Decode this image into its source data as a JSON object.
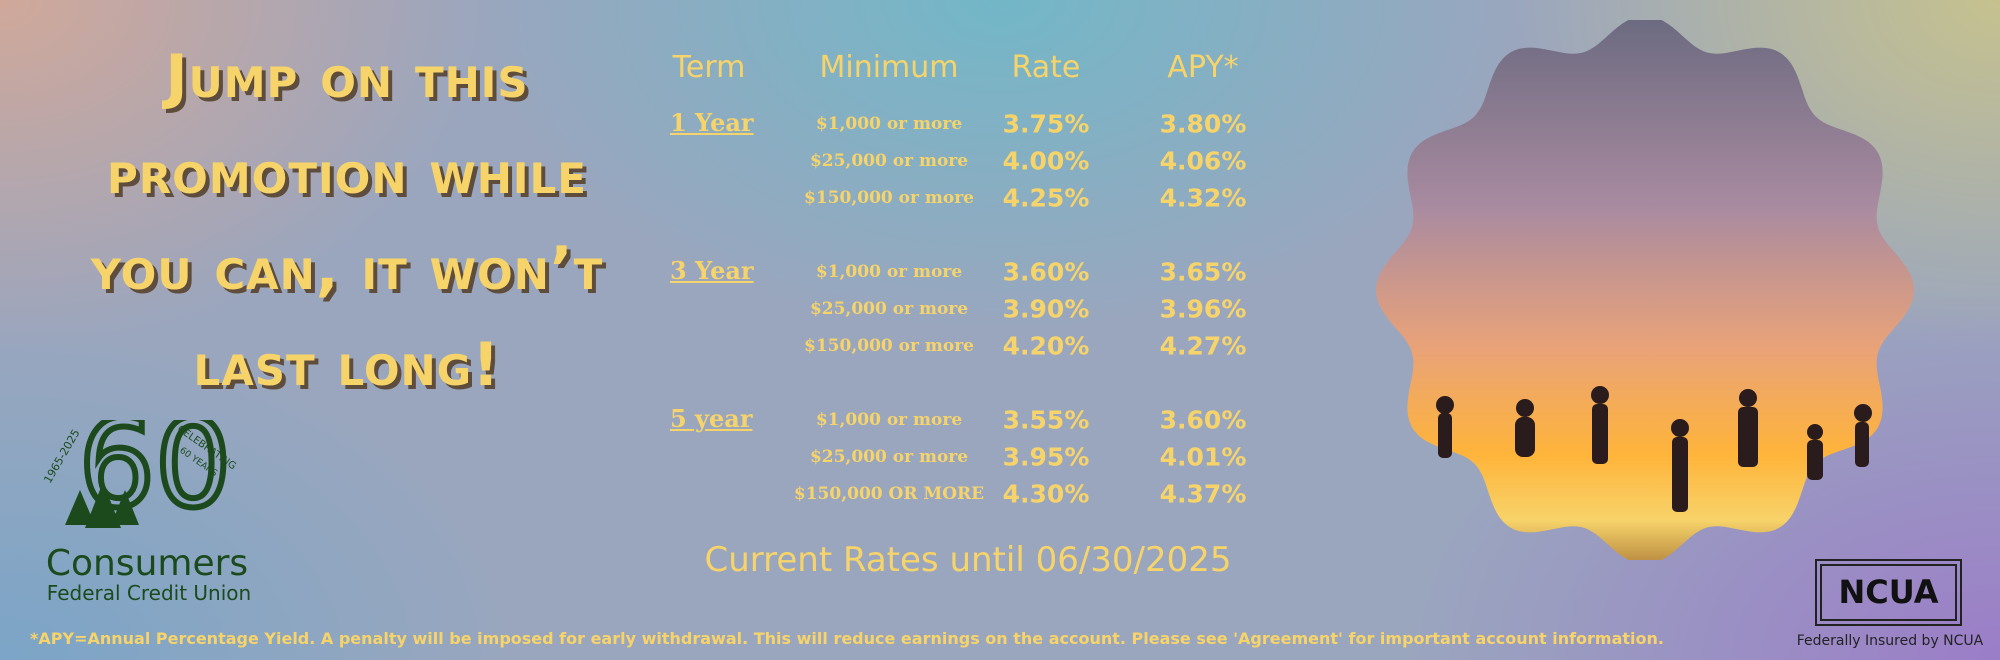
{
  "headline": [
    "Jump on this",
    "promotion while",
    "you can, it won’t",
    "last long!"
  ],
  "rates_table": {
    "headers": [
      "Term",
      "Minimum",
      "Rate",
      "APY*"
    ],
    "groups": [
      {
        "term": "1 Year",
        "tiers": [
          {
            "minimum": "$1,000 or more",
            "rate": "3.75%",
            "apy": "3.80%"
          },
          {
            "minimum": "$25,000 or more",
            "rate": "4.00%",
            "apy": "4.06%"
          },
          {
            "minimum": "$150,000 or more",
            "rate": "4.25%",
            "apy": "4.32%"
          }
        ]
      },
      {
        "term": "3 Year",
        "tiers": [
          {
            "minimum": "$1,000 or more",
            "rate": "3.60%",
            "apy": "3.65%"
          },
          {
            "minimum": "$25,000 or more",
            "rate": "3.90%",
            "apy": "3.96%"
          },
          {
            "minimum": "$150,000 or more",
            "rate": "4.20%",
            "apy": "4.27%"
          }
        ]
      },
      {
        "term": "5 year",
        "tiers": [
          {
            "minimum": "$1,000 or more",
            "rate": "3.55%",
            "apy": "3.60%"
          },
          {
            "minimum": "$25,000 or more",
            "rate": "3.95%",
            "apy": "4.01%"
          },
          {
            "minimum": "$150,000 OR MORE",
            "rate": "4.30%",
            "apy": "4.37%"
          }
        ]
      }
    ]
  },
  "rates_note": "Current Rates until 06/30/2025",
  "disclaimer": "*APY=Annual Percentage Yield. A penalty will be imposed for early withdrawal. This will reduce earnings on the account. Please see 'Agreement' for important account information.",
  "logo": {
    "years": "1965-2025",
    "number": "60",
    "celebrating": "CELEBRATING",
    "celebrating_years": "60 YEARS",
    "name": "Consumers",
    "subname": "Federal Credit Union"
  },
  "ncua": {
    "label": "NCUA",
    "caption": "Federally Insured by NCUA"
  }
}
